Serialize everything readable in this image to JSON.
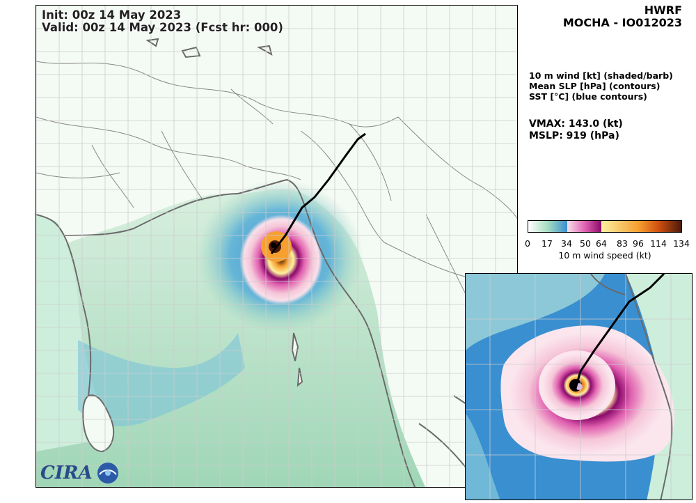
{
  "header": {
    "init_line": "Init:   00z 14 May 2023",
    "valid_line": "Valid: 00z 14 May 2023 (Fcst hr: 000)"
  },
  "title": {
    "model": "HWRF",
    "storm": "MOCHA - IO012023"
  },
  "legend": {
    "line1": "10 m wind [kt] (shaded/barb)",
    "line2": "Mean SLP [hPa] (contours)",
    "line3": "SST [°C] (blue contours)"
  },
  "stats": {
    "vmax": "VMAX: 143.0 (kt)",
    "mslp": "MSLP:  919 (hPa)"
  },
  "colorbar": {
    "ticks": [
      "0",
      "17",
      "34",
      "50",
      "64",
      "83",
      "96",
      "114",
      "134"
    ],
    "label": "10 m wind speed (kt)",
    "colors": [
      "#ffffff",
      "#a6dcc0",
      "#3a8fd0",
      "#f6c6d8",
      "#e060b0",
      "#8a0a6a",
      "#fff0a0",
      "#f7a030",
      "#d05010",
      "#4a1a0a"
    ]
  },
  "logo": {
    "text": "CIRA"
  },
  "colors": {
    "land": "#f4faf4",
    "ocean_light": "#c6e8d2",
    "ocean_mid": "#9dd6bc",
    "border": "#777777",
    "coast": "#6a6a6a",
    "track": "#000000"
  }
}
